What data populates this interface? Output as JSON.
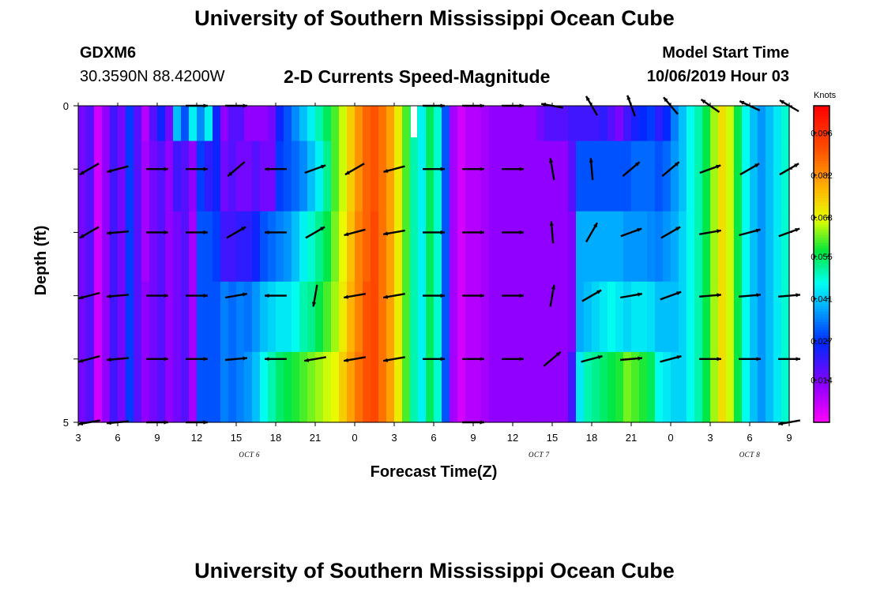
{
  "header": {
    "title_top": "University of Southern Mississippi Ocean Cube",
    "title_bottom": "University of Southern Mississippi Ocean Cube",
    "station": "GDXM6",
    "coords": "30.3590N 88.4200W",
    "plot_title": "2-D Currents Speed-Magnitude",
    "model_start_label": "Model Start Time",
    "model_start_value": "10/06/2019 Hour 03"
  },
  "chart_data": {
    "type": "heatmap",
    "title": "2-D Currents Speed-Magnitude",
    "xlabel": "Forecast Time(Z)",
    "ylabel": "Depth (ft)",
    "x_tick_labels": [
      "3",
      "6",
      "9",
      "12",
      "15",
      "18",
      "21",
      "0",
      "3",
      "6",
      "9",
      "12",
      "15",
      "18",
      "21",
      "0",
      "3",
      "6",
      "9"
    ],
    "date_labels": [
      {
        "text": "OCT 6",
        "hour": 13
      },
      {
        "text": "OCT 7",
        "hour": 35
      },
      {
        "text": "OCT 8",
        "hour": 51
      }
    ],
    "x_range_hours": [
      0,
      54
    ],
    "y_tick_labels": [
      "0",
      "5"
    ],
    "depth_range_ft": [
      0,
      5
    ],
    "depth_levels": 5,
    "colorbar": {
      "unit": "Knots",
      "range": [
        0,
        0.105
      ],
      "ticks": [
        "0.096",
        "0.082",
        "0.068",
        "0.055",
        "0.041",
        "0.027",
        "0.014"
      ]
    },
    "speed_columns_top_to_bottom": [
      [
        0.015,
        0.015,
        0.015,
        0.015,
        0.015
      ],
      [
        0.018,
        0.018,
        0.018,
        0.018,
        0.018
      ],
      [
        0.005,
        0.005,
        0.005,
        0.005,
        0.005
      ],
      [
        0.012,
        0.012,
        0.012,
        0.012,
        0.012
      ],
      [
        0.02,
        0.02,
        0.02,
        0.02,
        0.02
      ],
      [
        0.015,
        0.015,
        0.015,
        0.015,
        0.015
      ],
      [
        0.028,
        0.028,
        0.028,
        0.028,
        0.028
      ],
      [
        0.018,
        0.018,
        0.018,
        0.018,
        0.018
      ],
      [
        0.008,
        0.01,
        0.01,
        0.012,
        0.012
      ],
      [
        0.018,
        0.015,
        0.015,
        0.015,
        0.015
      ],
      [
        0.025,
        0.018,
        0.018,
        0.018,
        0.018
      ],
      [
        0.015,
        0.012,
        0.012,
        0.012,
        0.012
      ],
      [
        0.04,
        0.02,
        0.015,
        0.015,
        0.015
      ],
      [
        0.03,
        0.018,
        0.018,
        0.018,
        0.018
      ],
      [
        0.045,
        0.012,
        0.01,
        0.01,
        0.01
      ],
      [
        0.035,
        0.028,
        0.03,
        0.03,
        0.03
      ],
      [
        0.045,
        0.022,
        0.03,
        0.03,
        0.03
      ],
      [
        0.025,
        0.025,
        0.028,
        0.03,
        0.03
      ],
      [
        0.012,
        0.015,
        0.02,
        0.034,
        0.034
      ],
      [
        0.018,
        0.018,
        0.02,
        0.032,
        0.032
      ],
      [
        0.018,
        0.015,
        0.022,
        0.034,
        0.034
      ],
      [
        0.012,
        0.015,
        0.022,
        0.033,
        0.036
      ],
      [
        0.012,
        0.018,
        0.025,
        0.036,
        0.04
      ],
      [
        0.012,
        0.015,
        0.03,
        0.04,
        0.046
      ],
      [
        0.015,
        0.015,
        0.032,
        0.042,
        0.05
      ],
      [
        0.025,
        0.028,
        0.034,
        0.044,
        0.054
      ],
      [
        0.03,
        0.03,
        0.036,
        0.044,
        0.056
      ],
      [
        0.035,
        0.032,
        0.04,
        0.046,
        0.058
      ],
      [
        0.04,
        0.035,
        0.045,
        0.05,
        0.06
      ],
      [
        0.045,
        0.04,
        0.048,
        0.052,
        0.062
      ],
      [
        0.05,
        0.045,
        0.052,
        0.056,
        0.064
      ],
      [
        0.055,
        0.052,
        0.056,
        0.06,
        0.066
      ],
      [
        0.06,
        0.06,
        0.062,
        0.064,
        0.068
      ],
      [
        0.066,
        0.066,
        0.068,
        0.07,
        0.074
      ],
      [
        0.074,
        0.074,
        0.076,
        0.078,
        0.08
      ],
      [
        0.082,
        0.082,
        0.084,
        0.084,
        0.086
      ],
      [
        0.088,
        0.088,
        0.088,
        0.09,
        0.09
      ],
      [
        0.09,
        0.09,
        0.092,
        0.092,
        0.092
      ],
      [
        0.086,
        0.086,
        0.086,
        0.086,
        0.086
      ],
      [
        0.08,
        0.08,
        0.08,
        0.08,
        0.08
      ],
      [
        0.07,
        0.07,
        0.07,
        0.07,
        0.07
      ],
      [
        0.06,
        0.06,
        0.06,
        0.06,
        0.06
      ],
      [
        0.05,
        0.05,
        0.05,
        0.05,
        0.05
      ],
      [
        0.045,
        0.045,
        0.045,
        0.045,
        0.045
      ],
      [
        0.055,
        0.055,
        0.055,
        0.055,
        0.055
      ],
      [
        0.048,
        0.048,
        0.048,
        0.048,
        0.048
      ],
      [
        0.03,
        0.03,
        0.03,
        0.03,
        0.03
      ],
      [
        0.01,
        0.01,
        0.01,
        0.01,
        0.01
      ],
      [
        0.005,
        0.005,
        0.005,
        0.005,
        0.005
      ],
      [
        0.008,
        0.008,
        0.008,
        0.008,
        0.008
      ],
      [
        0.008,
        0.008,
        0.008,
        0.008,
        0.008
      ],
      [
        0.01,
        0.01,
        0.01,
        0.01,
        0.01
      ],
      [
        0.012,
        0.012,
        0.012,
        0.012,
        0.012
      ],
      [
        0.012,
        0.012,
        0.012,
        0.012,
        0.012
      ],
      [
        0.012,
        0.012,
        0.012,
        0.012,
        0.012
      ],
      [
        0.012,
        0.012,
        0.012,
        0.012,
        0.012
      ],
      [
        0.012,
        0.012,
        0.012,
        0.012,
        0.012
      ],
      [
        0.012,
        0.012,
        0.012,
        0.012,
        0.012
      ],
      [
        0.015,
        0.012,
        0.012,
        0.012,
        0.012
      ],
      [
        0.018,
        0.012,
        0.012,
        0.012,
        0.012
      ],
      [
        0.018,
        0.012,
        0.012,
        0.012,
        0.012
      ],
      [
        0.018,
        0.012,
        0.012,
        0.012,
        0.012
      ],
      [
        0.02,
        0.018,
        0.014,
        0.014,
        0.02
      ],
      [
        0.02,
        0.03,
        0.038,
        0.038,
        0.044
      ],
      [
        0.02,
        0.03,
        0.038,
        0.04,
        0.05
      ],
      [
        0.02,
        0.03,
        0.038,
        0.042,
        0.052
      ],
      [
        0.022,
        0.03,
        0.038,
        0.044,
        0.054
      ],
      [
        0.018,
        0.03,
        0.038,
        0.046,
        0.056
      ],
      [
        0.014,
        0.03,
        0.038,
        0.044,
        0.058
      ],
      [
        0.02,
        0.03,
        0.036,
        0.042,
        0.062
      ],
      [
        0.024,
        0.032,
        0.036,
        0.044,
        0.06
      ],
      [
        0.026,
        0.032,
        0.036,
        0.044,
        0.058
      ],
      [
        0.028,
        0.032,
        0.035,
        0.043,
        0.055
      ],
      [
        0.022,
        0.03,
        0.034,
        0.04,
        0.046
      ],
      [
        0.026,
        0.032,
        0.036,
        0.04,
        0.044
      ],
      [
        0.034,
        0.036,
        0.038,
        0.04,
        0.042
      ],
      [
        0.04,
        0.04,
        0.042,
        0.042,
        0.042
      ],
      [
        0.046,
        0.046,
        0.046,
        0.046,
        0.046
      ],
      [
        0.05,
        0.05,
        0.05,
        0.05,
        0.05
      ],
      [
        0.056,
        0.056,
        0.056,
        0.056,
        0.056
      ],
      [
        0.064,
        0.064,
        0.064,
        0.064,
        0.064
      ],
      [
        0.072,
        0.072,
        0.072,
        0.072,
        0.072
      ],
      [
        0.066,
        0.066,
        0.066,
        0.066,
        0.066
      ],
      [
        0.056,
        0.056,
        0.056,
        0.056,
        0.056
      ],
      [
        0.046,
        0.046,
        0.046,
        0.046,
        0.046
      ],
      [
        0.04,
        0.04,
        0.04,
        0.04,
        0.04
      ],
      [
        0.036,
        0.036,
        0.036,
        0.036,
        0.036
      ],
      [
        0.04,
        0.04,
        0.04,
        0.04,
        0.04
      ],
      [
        0.044,
        0.044,
        0.044,
        0.044,
        0.044
      ],
      [
        0.048,
        0.048,
        0.048,
        0.048,
        0.048
      ]
    ],
    "vector_hours": [
      0,
      3,
      6,
      9,
      12,
      15,
      18,
      21,
      24,
      27,
      30,
      33,
      36,
      39,
      42,
      45,
      48,
      51,
      54
    ],
    "vector_angles_deg_top_to_bottom": [
      [
        null,
        null,
        null,
        0,
        0,
        null,
        null,
        null,
        null,
        0,
        0,
        0,
        -170,
        -120,
        -110,
        -130,
        -145,
        -155,
        -150
      ],
      [
        150,
        165,
        0,
        0,
        140,
        180,
        -20,
        150,
        165,
        0,
        0,
        0,
        -100,
        -95,
        -40,
        -40,
        -20,
        -30,
        -30
      ],
      [
        150,
        175,
        0,
        0,
        -30,
        180,
        -30,
        165,
        170,
        0,
        0,
        0,
        -95,
        -60,
        -20,
        -30,
        -10,
        -15,
        -20
      ],
      [
        165,
        175,
        0,
        0,
        -10,
        180,
        100,
        170,
        170,
        0,
        0,
        0,
        -80,
        -30,
        -10,
        -20,
        -5,
        -5,
        -5
      ],
      [
        165,
        175,
        0,
        0,
        -5,
        180,
        170,
        170,
        170,
        0,
        0,
        0,
        -40,
        -15,
        -5,
        -15,
        0,
        0,
        0
      ],
      [
        170,
        175,
        0,
        0,
        null,
        null,
        null,
        null,
        null,
        null,
        0,
        null,
        null,
        null,
        null,
        null,
        null,
        null,
        170
      ]
    ],
    "missing_data_column_hour": 25.5
  }
}
